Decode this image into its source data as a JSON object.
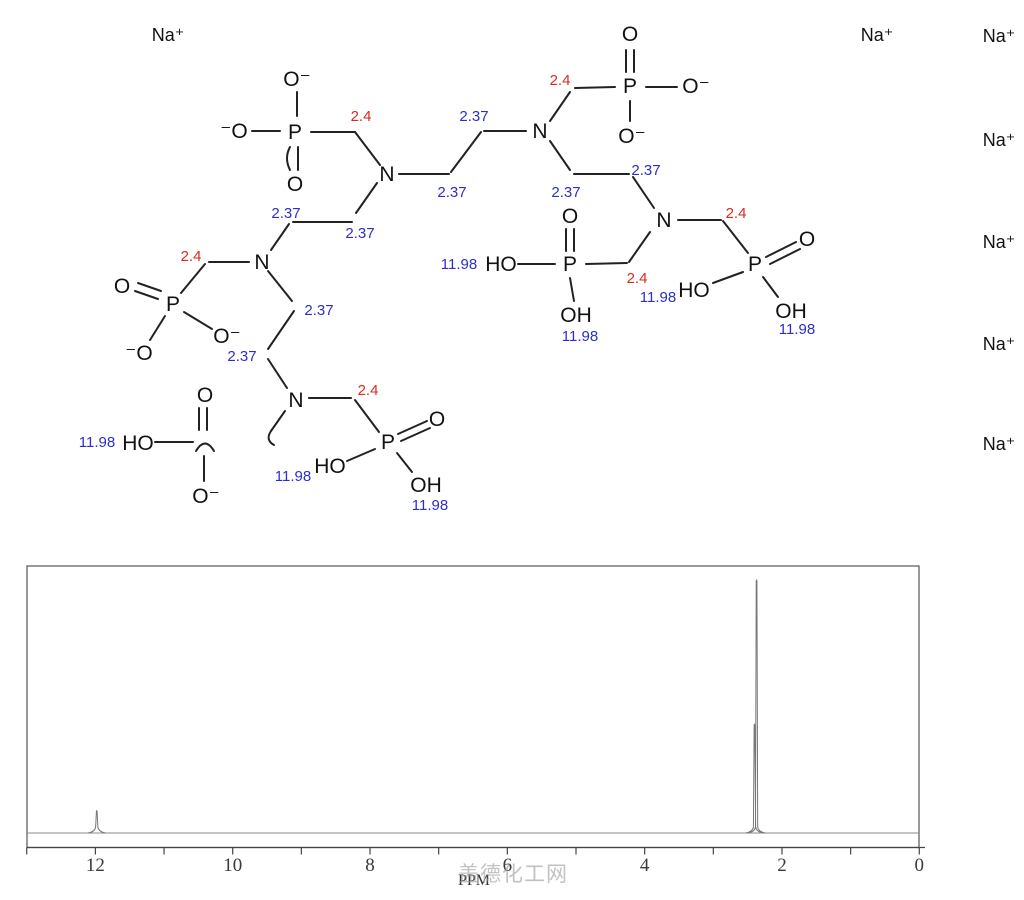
{
  "molecule": {
    "atom_labels": {
      "N": "N",
      "P": "P",
      "O": "O",
      "HO": "HO",
      "OH": "OH",
      "O_minus": "O⁻",
      "minus_O": "⁻O",
      "Na_plus": "Na⁺"
    },
    "counterion_count": 7,
    "shift_red": "2.4",
    "shift_blue_ch2": "2.37",
    "shift_blue_oh": "11.98",
    "colors": {
      "shift_red": "#d92b1e",
      "shift_blue": "#2d2dcd",
      "bond": "#222222"
    }
  },
  "chart_data": {
    "type": "line",
    "title": "",
    "xlabel": "PPM",
    "ylabel": "",
    "x_axis": {
      "min_ppm": 0,
      "max_ppm": 13,
      "inverted": true,
      "tick_step": 1,
      "label_step": 2
    },
    "grid": false,
    "xtick_labels": [
      {
        "ppm": 12,
        "label": "12"
      },
      {
        "ppm": 10,
        "label": "10"
      },
      {
        "ppm": 8,
        "label": "8"
      },
      {
        "ppm": 6,
        "label": "6"
      },
      {
        "ppm": 4,
        "label": "4"
      },
      {
        "ppm": 2,
        "label": "2"
      },
      {
        "ppm": 0,
        "label": "0"
      }
    ],
    "peaks": [
      {
        "ppm": 11.98,
        "rel_intensity": 0.086
      },
      {
        "ppm": 2.4,
        "rel_intensity": 0.41
      },
      {
        "ppm": 2.37,
        "rel_intensity": 0.95
      }
    ],
    "baseline": true
  },
  "watermark": {
    "text": "盖德化工网"
  }
}
